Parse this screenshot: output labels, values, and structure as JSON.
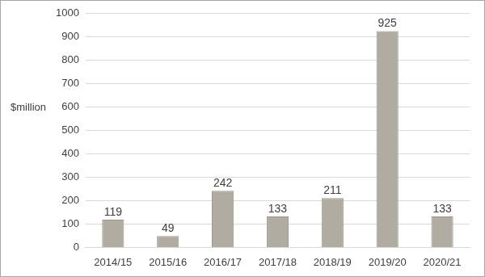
{
  "chart_data": {
    "type": "bar",
    "y_label": "$million",
    "categories": [
      "2014/15",
      "2015/16",
      "2016/17",
      "2017/18",
      "2018/19",
      "2019/20",
      "2020/21"
    ],
    "values": [
      119,
      49,
      242,
      133,
      211,
      925,
      133
    ],
    "color": "#b0aca2",
    "ylim": [
      0,
      1000
    ],
    "yticks": [
      0,
      100,
      200,
      300,
      400,
      500,
      600,
      700,
      800,
      900,
      1000
    ],
    "grid": true,
    "data_labels": true
  }
}
